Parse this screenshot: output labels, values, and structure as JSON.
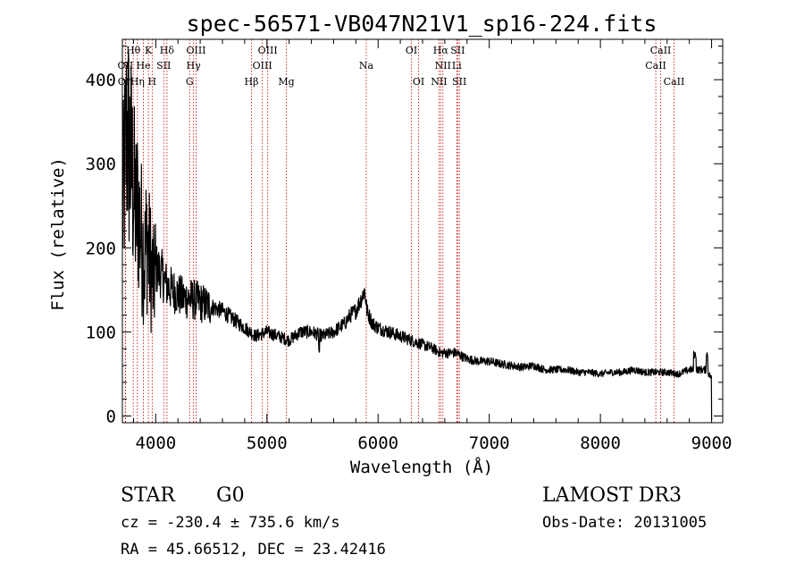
{
  "chart_data": {
    "type": "line",
    "title": "spec-56571-VB047N21V1_sp16-224.fits",
    "xlabel": "Wavelength (Å)",
    "ylabel": "Flux (relative)",
    "xlim": [
      3700,
      9100
    ],
    "ylim": [
      -8,
      448
    ],
    "xticks": [
      4000,
      5000,
      6000,
      7000,
      8000,
      9000
    ],
    "yticks": [
      0,
      100,
      200,
      300,
      400
    ],
    "grid": false,
    "spectrum": {
      "name": "flux",
      "x": [
        3700,
        3720,
        3740,
        3760,
        3780,
        3800,
        3820,
        3840,
        3860,
        3880,
        3900,
        3920,
        3940,
        3960,
        3980,
        4000,
        4050,
        4100,
        4150,
        4200,
        4250,
        4300,
        4350,
        4400,
        4450,
        4500,
        4600,
        4700,
        4800,
        4850,
        4900,
        5000,
        5100,
        5200,
        5300,
        5400,
        5500,
        5600,
        5700,
        5750,
        5800,
        5850,
        5880,
        5900,
        5950,
        6000,
        6100,
        6200,
        6300,
        6400,
        6500,
        6560,
        6600,
        6700,
        6800,
        6900,
        7000,
        7100,
        7200,
        7300,
        7400,
        7500,
        7600,
        7700,
        7800,
        7900,
        8000,
        8100,
        8200,
        8300,
        8400,
        8500,
        8600,
        8700,
        8800,
        8850,
        8900,
        8950,
        9000
      ],
      "y": [
        235,
        290,
        340,
        320,
        300,
        270,
        240,
        250,
        225,
        205,
        185,
        215,
        190,
        175,
        155,
        175,
        170,
        155,
        150,
        145,
        140,
        140,
        138,
        135,
        132,
        130,
        125,
        115,
        105,
        100,
        95,
        100,
        95,
        90,
        100,
        100,
        95,
        100,
        110,
        120,
        125,
        140,
        150,
        125,
        110,
        105,
        100,
        95,
        90,
        85,
        80,
        75,
        75,
        75,
        68,
        65,
        65,
        62,
        60,
        58,
        60,
        55,
        55,
        55,
        52,
        52,
        50,
        52,
        52,
        55,
        52,
        52,
        52,
        50,
        55,
        55,
        55,
        55,
        45
      ]
    },
    "lines": [
      {
        "label": "Hθ",
        "x": 3798,
        "row": 0
      },
      {
        "label": "K",
        "x": 3934,
        "row": 0
      },
      {
        "label": "Hδ",
        "x": 4101,
        "row": 0
      },
      {
        "label": "OIII",
        "x": 4363,
        "row": 0
      },
      {
        "label": "OIII",
        "x": 5007,
        "row": 0
      },
      {
        "label": "OI",
        "x": 6300,
        "row": 0
      },
      {
        "label": "Hα",
        "x": 6563,
        "row": 0
      },
      {
        "label": "SII",
        "x": 6716,
        "row": 0
      },
      {
        "label": "CaII",
        "x": 8542,
        "row": 0
      },
      {
        "label": "OII",
        "x": 3727,
        "row": 1
      },
      {
        "label": "He",
        "x": 3889,
        "row": 1
      },
      {
        "label": "SII",
        "x": 4072,
        "row": 1
      },
      {
        "label": "Hγ",
        "x": 4340,
        "row": 1
      },
      {
        "label": "OIII",
        "x": 4959,
        "row": 1
      },
      {
        "label": "Na",
        "x": 5893,
        "row": 1
      },
      {
        "label": "NII",
        "x": 6583,
        "row": 1
      },
      {
        "label": "Li",
        "x": 6708,
        "row": 1
      },
      {
        "label": "CaII",
        "x": 8498,
        "row": 1
      },
      {
        "label": "OII",
        "x": 3729,
        "row": 2
      },
      {
        "label": "Hη",
        "x": 3835,
        "row": 2
      },
      {
        "label": "H",
        "x": 3968,
        "row": 2
      },
      {
        "label": "G",
        "x": 4305,
        "row": 2
      },
      {
        "label": "Hβ",
        "x": 4861,
        "row": 2
      },
      {
        "label": "Mg",
        "x": 5175,
        "row": 2
      },
      {
        "label": "OI",
        "x": 6364,
        "row": 2
      },
      {
        "label": "NII",
        "x": 6548,
        "row": 2
      },
      {
        "label": "SII",
        "x": 6731,
        "row": 2
      },
      {
        "label": "CaII",
        "x": 8662,
        "row": 2
      }
    ]
  },
  "info": {
    "object_class": "STAR",
    "subclass": "G0",
    "survey": "LAMOST DR3",
    "redshift": "cz = -230.4 ± 735.6 km/s",
    "obs_date": "Obs-Date: 20131005",
    "coords": "RA =  45.66512, DEC =  23.42416"
  },
  "colors": {
    "spectrum": "#000000",
    "line_markers": "#cc0000",
    "axes": "#000000",
    "background": "#ffffff"
  }
}
